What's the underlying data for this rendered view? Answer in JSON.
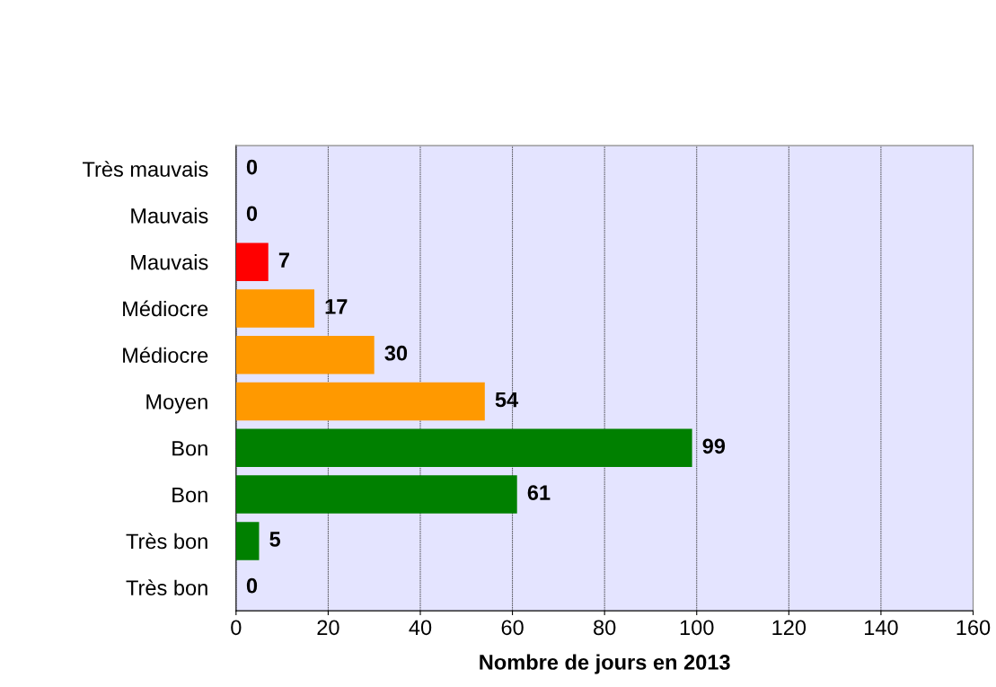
{
  "chart_data": {
    "type": "bar",
    "orientation": "horizontal",
    "xlabel": "Nombre de jours en 2013",
    "categories": [
      "Très mauvais",
      "Mauvais",
      "Mauvais",
      "Médiocre",
      "Médiocre",
      "Moyen",
      "Bon",
      "Bon",
      "Très bon",
      "Très bon"
    ],
    "values": [
      0,
      0,
      7,
      17,
      30,
      54,
      99,
      61,
      5,
      0
    ],
    "colors": [
      "#ff0000",
      "#ff0000",
      "#ff0000",
      "#ff9900",
      "#ff9900",
      "#ff9900",
      "#008000",
      "#008000",
      "#008000",
      "#008000"
    ],
    "xlim": [
      0,
      160
    ],
    "xticks": [
      0,
      20,
      40,
      60,
      80,
      100,
      120,
      140,
      160
    ],
    "grid": "x",
    "data_labels": true
  }
}
